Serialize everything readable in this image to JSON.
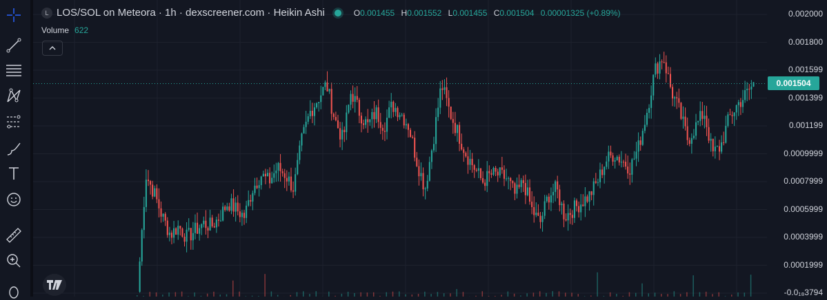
{
  "legend": {
    "symbol_icon": "L",
    "title": "LOS/SOL on Meteora · 1h · dexscreener.com · Heikin Ashi",
    "o_label": "O",
    "o_value": "0.001455",
    "h_label": "H",
    "h_value": "0.001552",
    "l_label": "L",
    "l_value": "0.001455",
    "c_label": "C",
    "c_value": "0.001504",
    "change": "0.00001325 (+0.89%)"
  },
  "volume": {
    "label": "Volume",
    "value": "622"
  },
  "collapse_icon": "chevron-up-icon",
  "tools": [
    "crosshair-icon",
    "trend-line-icon",
    "horizontal-lines-icon",
    "pattern-icon",
    "fib-icon",
    "brush-icon",
    "text-icon",
    "emoji-icon",
    "ruler-icon",
    "zoom-icon",
    "lock-icon"
  ],
  "colors": {
    "up": "#26a69a",
    "down": "#ef5350",
    "background": "#131722",
    "grid": "#1e222d"
  },
  "chart_data": {
    "type": "candlestick",
    "chart_style": "Heikin Ashi",
    "y_ticks": [
      "0.002000",
      "0.001800",
      "0.001599",
      "0.001399",
      "0.001199",
      "0.0009999",
      "0.0007999",
      "0.0005999",
      "0.0003999",
      "0.0001999",
      "-0.0₁₈3794"
    ],
    "ylim": [
      0.0,
      0.002
    ],
    "last_price": "0.001504",
    "close_series": [
      1e-05,
      0.00085,
      0.00072,
      0.00055,
      0.00042,
      0.00048,
      0.0004,
      0.00045,
      0.0005,
      0.00048,
      0.00055,
      0.00065,
      0.0006,
      0.00055,
      0.00075,
      0.00085,
      0.0008,
      0.0009,
      0.00085,
      0.00075,
      0.0011,
      0.0013,
      0.0014,
      0.0015,
      0.00125,
      0.0011,
      0.00145,
      0.0013,
      0.0012,
      0.0013,
      0.0012,
      0.00135,
      0.0013,
      0.0012,
      0.00095,
      0.00075,
      0.0011,
      0.0015,
      0.0013,
      0.00115,
      0.001,
      0.0009,
      0.0008,
      0.00085,
      0.00085,
      0.00082,
      0.0007,
      0.0008,
      0.0006,
      0.0005,
      0.0007,
      0.00075,
      0.00055,
      0.0006,
      0.00065,
      0.0007,
      0.0008,
      0.00095,
      0.001,
      0.00095,
      0.0009,
      0.00105,
      0.0013,
      0.0016,
      0.0017,
      0.00145,
      0.0013,
      0.0011,
      0.0012,
      0.0013,
      0.001,
      0.00105,
      0.00125,
      0.00135,
      0.00142,
      0.0015
    ]
  }
}
